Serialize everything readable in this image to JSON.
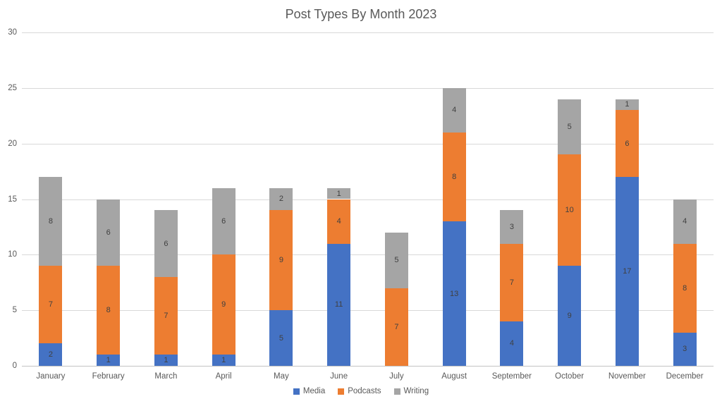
{
  "chart_data": {
    "type": "bar",
    "stacked": true,
    "title": "Post Types By Month 2023",
    "categories": [
      "January",
      "February",
      "March",
      "April",
      "May",
      "June",
      "July",
      "August",
      "September",
      "October",
      "November",
      "December"
    ],
    "series": [
      {
        "name": "Media",
        "color": "#4472C4",
        "values": [
          2,
          1,
          1,
          1,
          5,
          11,
          0,
          13,
          4,
          9,
          17,
          3
        ]
      },
      {
        "name": "Podcasts",
        "color": "#ED7D31",
        "values": [
          7,
          8,
          7,
          9,
          9,
          4,
          7,
          8,
          7,
          10,
          6,
          8
        ]
      },
      {
        "name": "Writing",
        "color": "#A5A5A5",
        "values": [
          8,
          6,
          6,
          6,
          2,
          1,
          5,
          4,
          3,
          5,
          1,
          4
        ]
      }
    ],
    "totals": [
      17,
      15,
      14,
      16,
      16,
      16,
      12,
      25,
      14,
      24,
      24,
      15
    ],
    "xlabel": "",
    "ylabel": "",
    "ylim": [
      0,
      30
    ],
    "yticks": [
      0,
      5,
      10,
      15,
      20,
      25,
      30
    ],
    "grid": true,
    "data_labels": true,
    "legend_position": "bottom"
  },
  "colors": {
    "background": "#ffffff",
    "title": "#595959",
    "axis_label": "#595959",
    "gridline": "#d9d9d9",
    "axis_line": "#c3c3c3",
    "data_label": "#404040"
  }
}
